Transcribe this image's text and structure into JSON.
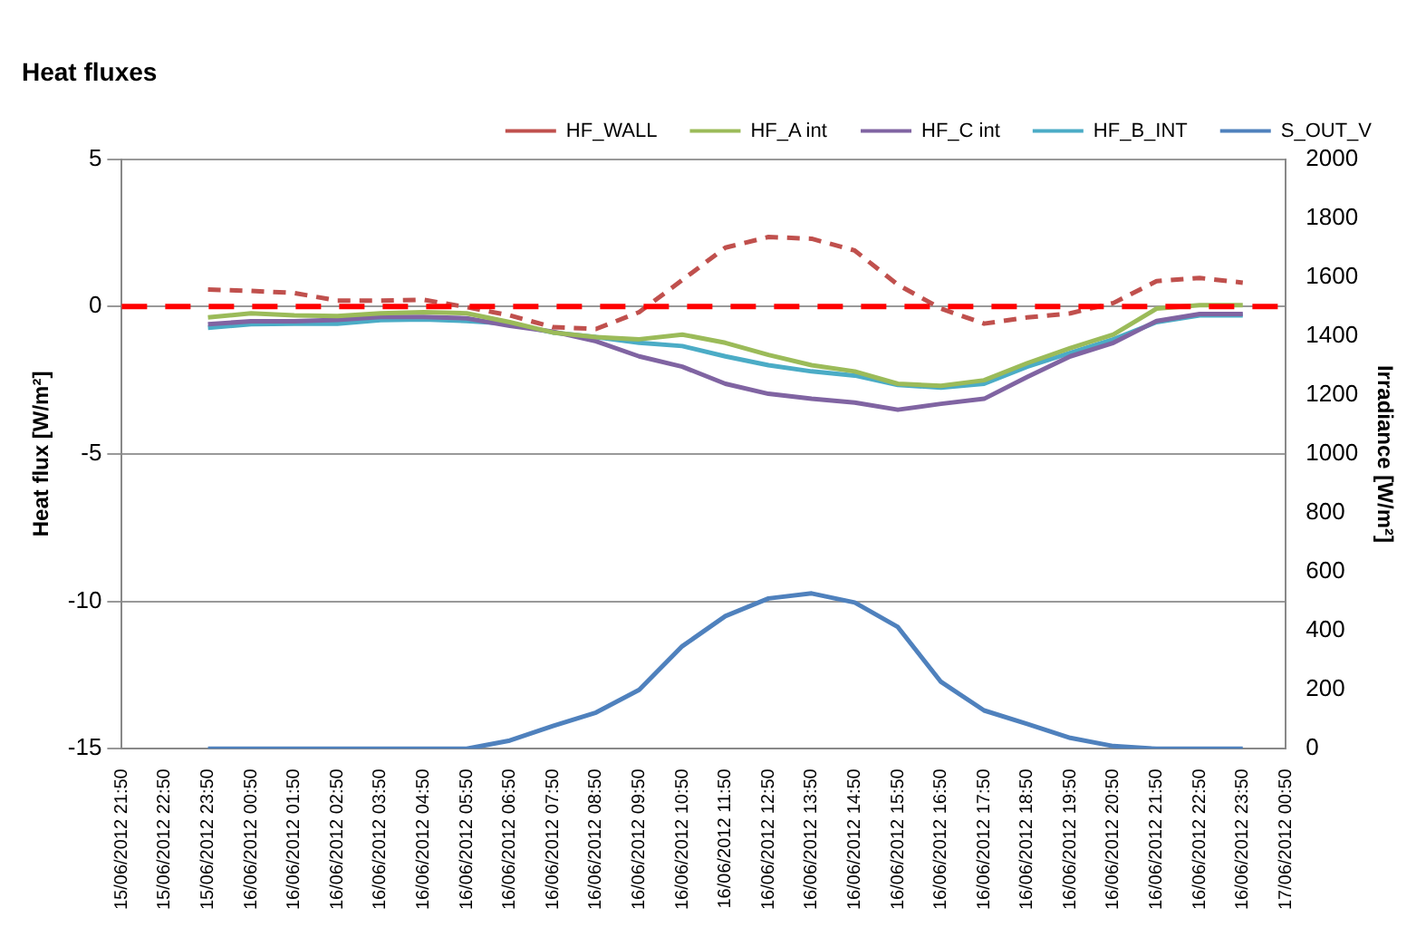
{
  "chart_data": {
    "type": "line",
    "title": "Heat fluxes",
    "ylabel": "Heat flux [W/m²]",
    "y2label": "Irradiance [W/m²]",
    "categories": [
      "15/06/2012 21:50",
      "15/06/2012 22:50",
      "15/06/2012 23:50",
      "16/06/2012 00:50",
      "16/06/2012 01:50",
      "16/06/2012 02:50",
      "16/06/2012 03:50",
      "16/06/2012 04:50",
      "16/06/2012 05:50",
      "16/06/2012 06:50",
      "16/06/2012 07:50",
      "16/06/2012 08:50",
      "16/06/2012 09:50",
      "16/06/2012 10:50",
      "16/06/2012 11:50",
      "16/06/2012 12:50",
      "16/06/2012 13:50",
      "16/06/2012 14:50",
      "16/06/2012 15:50",
      "16/06/2012 16:50",
      "16/06/2012 17:50",
      "16/06/2012 18:50",
      "16/06/2012 19:50",
      "16/06/2012 20:50",
      "16/06/2012 21:50",
      "16/06/2012 22:50",
      "16/06/2012 23:50",
      "17/06/2012 00:50"
    ],
    "series": [
      {
        "name": "HF_WALL",
        "color": "#c0504d",
        "line_style": "dashed",
        "values": [
          null,
          null,
          0.58,
          0.53,
          0.46,
          0.2,
          0.2,
          0.23,
          -0.02,
          -0.3,
          -0.7,
          -0.76,
          -0.19,
          0.9,
          2.0,
          2.36,
          2.3,
          1.9,
          0.74,
          -0.07,
          -0.58,
          -0.37,
          -0.23,
          0.12,
          0.86,
          0.97,
          0.81,
          null
        ]
      },
      {
        "name": "HF_A int",
        "color": "#9bbb59",
        "values": [
          null,
          null,
          -0.37,
          -0.23,
          -0.3,
          -0.32,
          -0.23,
          -0.19,
          -0.23,
          -0.53,
          -0.88,
          -1.04,
          -1.11,
          -0.95,
          -1.23,
          -1.64,
          -1.99,
          -2.2,
          -2.62,
          -2.69,
          -2.5,
          -1.92,
          -1.41,
          -0.95,
          -0.07,
          0.05,
          0.05,
          null
        ]
      },
      {
        "name": "HF_C int",
        "color": "#8064a2",
        "values": [
          null,
          null,
          -0.6,
          -0.5,
          -0.5,
          -0.45,
          -0.35,
          -0.35,
          -0.4,
          -0.65,
          -0.85,
          -1.18,
          -1.69,
          -2.04,
          -2.62,
          -2.96,
          -3.13,
          -3.26,
          -3.5,
          -3.3,
          -3.13,
          -2.39,
          -1.69,
          -1.23,
          -0.49,
          -0.25,
          -0.25,
          null
        ]
      },
      {
        "name": "HF_B_INT",
        "color": "#4bacc6",
        "values": [
          null,
          null,
          -0.72,
          -0.6,
          -0.58,
          -0.58,
          -0.46,
          -0.44,
          -0.49,
          -0.58,
          -0.88,
          -1.04,
          -1.23,
          -1.34,
          -1.69,
          -1.99,
          -2.2,
          -2.34,
          -2.66,
          -2.75,
          -2.62,
          -2.04,
          -1.57,
          -1.11,
          -0.53,
          -0.3,
          -0.3,
          null
        ]
      },
      {
        "name": "S_OUT_V",
        "color": "#4f81bd",
        "axis": "y2",
        "values": [
          null,
          null,
          0,
          0,
          0,
          0,
          0,
          0,
          0,
          28,
          77,
          123,
          200,
          348,
          450,
          510,
          527,
          496,
          413,
          227,
          130,
          84,
          37,
          9,
          0,
          0,
          0,
          null
        ]
      }
    ],
    "ylim": [
      -15,
      5
    ],
    "yticks": [
      -15,
      -10,
      -5,
      0,
      5
    ],
    "y2lim": [
      0,
      2000
    ],
    "y2ticks": [
      0,
      200,
      400,
      600,
      800,
      1000,
      1200,
      1400,
      1600,
      1800,
      2000
    ],
    "ref_lines": [
      {
        "axis": "y",
        "value": 0,
        "color": "#ff0000",
        "line_style": "dashed"
      }
    ],
    "grid": "y",
    "legend": "top right",
    "marker": "none"
  }
}
